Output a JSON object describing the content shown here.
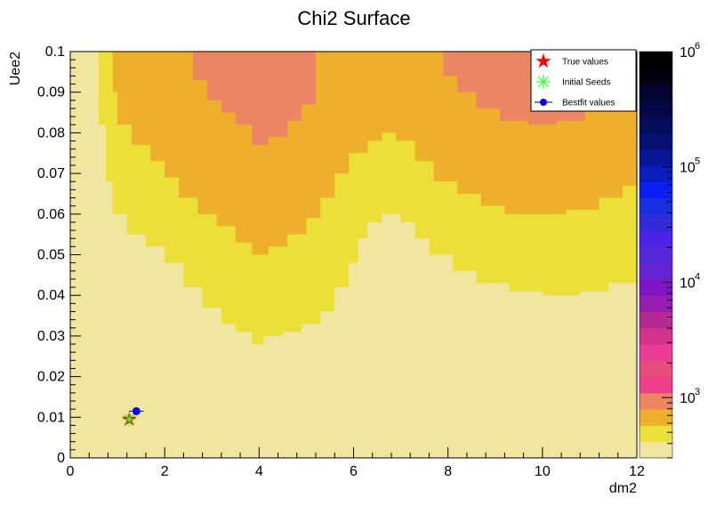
{
  "chart_data": {
    "type": "heatmap",
    "title": "Chi2 Surface",
    "xlabel": "dm2",
    "ylabel": "Uee2",
    "xlim": [
      0,
      12
    ],
    "ylim": [
      0,
      0.1
    ],
    "x_ticks": [
      "0",
      "2",
      "4",
      "6",
      "8",
      "10",
      "12"
    ],
    "y_ticks": [
      "0",
      "0.01",
      "0.02",
      "0.03",
      "0.04",
      "0.05",
      "0.06",
      "0.07",
      "0.08",
      "0.09",
      "0.1"
    ],
    "z_scale": "log",
    "z_range": [
      300,
      1000000
    ],
    "colorbar_ticks": [
      {
        "base": "10",
        "exp": "3",
        "value": 1000
      },
      {
        "base": "10",
        "exp": "4",
        "value": 10000
      },
      {
        "base": "10",
        "exp": "5",
        "value": 100000
      },
      {
        "base": "10",
        "exp": "6",
        "value": 1000000
      }
    ],
    "colorbar_colors": [
      "#f0e6a0",
      "#ece038",
      "#edaf2c",
      "#ec8563",
      "#ef3e8a",
      "#e54c7b",
      "#ea3c95",
      "#d2338a",
      "#b52a92",
      "#961eb0",
      "#7e14c3",
      "#6522d0",
      "#5428d8",
      "#4a22e8",
      "#2f2cd8",
      "#1a2ee0",
      "#0a1ff0",
      "#0b1ec0",
      "#0a1496",
      "#061070",
      "#060d58",
      "#050845",
      "#030530",
      "#010210",
      "#000000"
    ],
    "contour_colors": {
      "level0": "#f0e6a0",
      "level1": "#ece038",
      "level2": "#edaf2c",
      "level3": "#ec8563"
    },
    "contours_note": "",
    "boundaries": {
      "level1": [
        [
          0.6,
          0.1
        ],
        [
          0.6,
          0.082
        ],
        [
          0.75,
          0.068
        ],
        [
          0.9,
          0.06
        ],
        [
          1.2,
          0.055
        ],
        [
          1.6,
          0.052
        ],
        [
          2,
          0.048
        ],
        [
          2.4,
          0.042
        ],
        [
          2.8,
          0.037
        ],
        [
          3.2,
          0.033
        ],
        [
          3.5,
          0.031
        ],
        [
          3.85,
          0.028
        ],
        [
          4.1,
          0.03
        ],
        [
          4.5,
          0.031
        ],
        [
          4.9,
          0.033
        ],
        [
          5.3,
          0.036
        ],
        [
          5.6,
          0.042
        ],
        [
          5.9,
          0.048
        ],
        [
          6.1,
          0.054
        ],
        [
          6.3,
          0.058
        ],
        [
          6.6,
          0.06
        ],
        [
          7,
          0.058
        ],
        [
          7.3,
          0.054
        ],
        [
          7.6,
          0.05
        ],
        [
          8.1,
          0.046
        ],
        [
          8.6,
          0.043
        ],
        [
          9.3,
          0.041
        ],
        [
          10,
          0.04
        ],
        [
          10.8,
          0.041
        ],
        [
          11.4,
          0.043
        ],
        [
          12,
          0.046
        ]
      ],
      "level2": [
        [
          0.9,
          0.1
        ],
        [
          0.9,
          0.09
        ],
        [
          1,
          0.082
        ],
        [
          1.3,
          0.077
        ],
        [
          1.7,
          0.073
        ],
        [
          2,
          0.069
        ],
        [
          2.3,
          0.064
        ],
        [
          2.7,
          0.06
        ],
        [
          3.1,
          0.057
        ],
        [
          3.5,
          0.053
        ],
        [
          3.85,
          0.05
        ],
        [
          4.2,
          0.052
        ],
        [
          4.6,
          0.055
        ],
        [
          5,
          0.059
        ],
        [
          5.3,
          0.064
        ],
        [
          5.6,
          0.07
        ],
        [
          5.9,
          0.075
        ],
        [
          6.3,
          0.078
        ],
        [
          6.6,
          0.08
        ],
        [
          6.9,
          0.078
        ],
        [
          7.3,
          0.073
        ],
        [
          7.7,
          0.068
        ],
        [
          8.2,
          0.065
        ],
        [
          8.7,
          0.062
        ],
        [
          9.2,
          0.06
        ],
        [
          9.8,
          0.06
        ],
        [
          10.5,
          0.061
        ],
        [
          11.2,
          0.064
        ],
        [
          11.7,
          0.067
        ],
        [
          12,
          0.07
        ]
      ],
      "level3": [
        [
          2.4,
          0.1
        ],
        [
          2.6,
          0.093
        ],
        [
          2.9,
          0.088
        ],
        [
          3.2,
          0.085
        ],
        [
          3.5,
          0.082
        ],
        [
          3.85,
          0.077
        ],
        [
          4.2,
          0.079
        ],
        [
          4.6,
          0.083
        ],
        [
          4.9,
          0.087
        ],
        [
          5.2,
          0.1
        ]
      ],
      "level3b": [
        [
          7.8,
          0.1
        ],
        [
          7.9,
          0.094
        ],
        [
          8.2,
          0.09
        ],
        [
          8.6,
          0.086
        ],
        [
          9.1,
          0.083
        ],
        [
          9.7,
          0.082
        ],
        [
          10.3,
          0.083
        ],
        [
          10.9,
          0.086
        ],
        [
          11.4,
          0.09
        ],
        [
          11.8,
          0.094
        ],
        [
          12,
          0.096
        ]
      ]
    },
    "legend": {
      "placement": "top-right",
      "entries": [
        {
          "label": "True values",
          "marker": "star",
          "color": "#ff0000"
        },
        {
          "label": "Initial Seeds",
          "marker": "asterisk",
          "color": "#33ff33"
        },
        {
          "label": "Bestfit values",
          "marker": "circle",
          "color": "#0000ff"
        }
      ]
    },
    "points": [
      {
        "series": "True values",
        "x": 1.25,
        "y": 0.0095
      },
      {
        "series": "Initial Seeds",
        "x": 1.25,
        "y": 0.0095
      },
      {
        "series": "Bestfit values",
        "x": 1.4,
        "y": 0.0115
      }
    ],
    "grid": false
  }
}
